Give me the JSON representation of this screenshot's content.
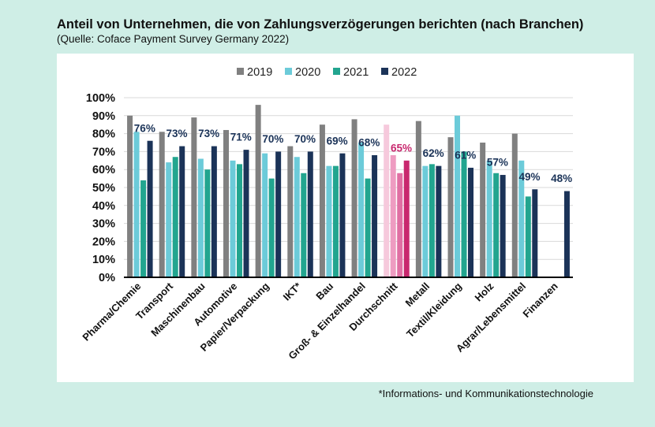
{
  "title": "Anteil von Unternehmen, die von Zahlungsverzögerungen berichten (nach Branchen)",
  "subtitle": "(Quelle: Coface Payment Survey Germany 2022)",
  "footnote": "*Informations- und Kommunikationstechnologie",
  "chart_data": {
    "type": "bar",
    "title": "Anteil von Unternehmen, die von Zahlungsverzögerungen berichten (nach Branchen)",
    "xlabel": "",
    "ylabel": "",
    "ylim": [
      0,
      100
    ],
    "yticks": [
      "0%",
      "10%",
      "20%",
      "30%",
      "40%",
      "50%",
      "60%",
      "70%",
      "80%",
      "90%",
      "100%"
    ],
    "grid": true,
    "legend_position": "top-center",
    "categories": [
      "Pharma/Chemie",
      "Transport",
      "Maschinenbau",
      "Automotive",
      "Papier/Verpackung",
      "IKT*",
      "Bau",
      "Groß- & Einzelhandel",
      "Durchschnitt",
      "Metall",
      "Textil/Kleidung",
      "Holz",
      "Agrar/Lebensmittel",
      "Finanzen"
    ],
    "series": [
      {
        "name": "2019",
        "color": "#808080",
        "values": [
          90,
          81,
          89,
          82,
          96,
          73,
          85,
          88,
          85,
          87,
          78,
          75,
          80,
          null
        ]
      },
      {
        "name": "2020",
        "color": "#6ccbd9",
        "values": [
          81,
          64,
          66,
          65,
          69,
          67,
          62,
          75,
          68,
          62,
          90,
          65,
          65,
          null
        ]
      },
      {
        "name": "2021",
        "color": "#22a58f",
        "values": [
          54,
          67,
          60,
          63,
          55,
          58,
          62,
          55,
          58,
          63,
          70,
          58,
          45,
          null
        ]
      },
      {
        "name": "2022",
        "color": "#1b3358",
        "values": [
          76,
          73,
          73,
          71,
          70,
          70,
          69,
          68,
          65,
          62,
          61,
          57,
          49,
          48
        ]
      }
    ],
    "highlight": {
      "category": "Durchschnitt",
      "colors": [
        "#f6c9dc",
        "#ee9cc1",
        "#e06fa3",
        "#c8286e"
      ]
    },
    "data_labels": [
      "76%",
      "73%",
      "73%",
      "71%",
      "70%",
      "70%",
      "69%",
      "68%",
      "65%",
      "62%",
      "61%",
      "57%",
      "49%",
      "48%"
    ],
    "label_color": "#1b3358",
    "highlight_label_color": "#c8286e"
  }
}
